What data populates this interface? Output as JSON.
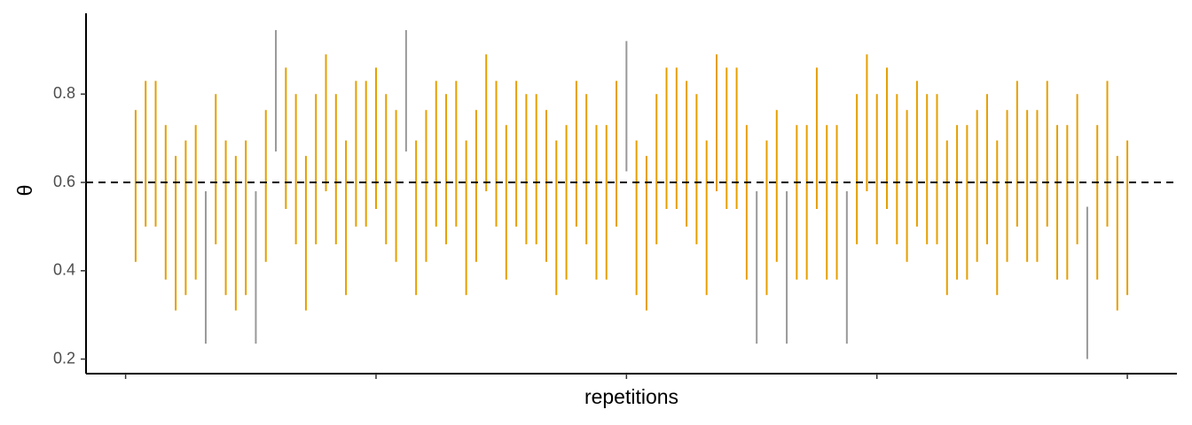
{
  "chart_data": {
    "type": "interval",
    "x_label": "repetitions",
    "y_label": "θ",
    "x": [
      1,
      2,
      3,
      4,
      5,
      6,
      7,
      8,
      9,
      10,
      11,
      12,
      13,
      14,
      15,
      16,
      17,
      18,
      19,
      20,
      21,
      22,
      23,
      24,
      25,
      26,
      27,
      28,
      29,
      30,
      31,
      32,
      33,
      34,
      35,
      36,
      37,
      38,
      39,
      40,
      41,
      42,
      43,
      44,
      45,
      46,
      47,
      48,
      49,
      50,
      51,
      52,
      53,
      54,
      55,
      56,
      57,
      58,
      59,
      60,
      61,
      62,
      63,
      64,
      65,
      66,
      67,
      68,
      69,
      70,
      71,
      72,
      73,
      74,
      75,
      76,
      77,
      78,
      79,
      80,
      81,
      82,
      83,
      84,
      85,
      86,
      87,
      88,
      89,
      90,
      91,
      92,
      93,
      94,
      95,
      96,
      97,
      98,
      99,
      100
    ],
    "lower": [
      0.42,
      0.5,
      0.5,
      0.38,
      0.31,
      0.345,
      0.38,
      0.235,
      0.46,
      0.345,
      0.31,
      0.345,
      0.235,
      0.42,
      0.67,
      0.54,
      0.46,
      0.31,
      0.46,
      0.58,
      0.46,
      0.345,
      0.5,
      0.5,
      0.54,
      0.46,
      0.42,
      0.67,
      0.345,
      0.42,
      0.5,
      0.46,
      0.5,
      0.345,
      0.42,
      0.58,
      0.5,
      0.38,
      0.5,
      0.46,
      0.46,
      0.42,
      0.345,
      0.38,
      0.5,
      0.46,
      0.38,
      0.38,
      0.5,
      0.625,
      0.345,
      0.31,
      0.46,
      0.54,
      0.54,
      0.5,
      0.46,
      0.345,
      0.58,
      0.54,
      0.54,
      0.38,
      0.235,
      0.345,
      0.42,
      0.235,
      0.38,
      0.38,
      0.54,
      0.38,
      0.38,
      0.235,
      0.46,
      0.58,
      0.46,
      0.54,
      0.46,
      0.42,
      0.5,
      0.46,
      0.46,
      0.345,
      0.38,
      0.38,
      0.42,
      0.46,
      0.345,
      0.42,
      0.5,
      0.42,
      0.42,
      0.5,
      0.38,
      0.38,
      0.46,
      0.2,
      0.38,
      0.5,
      0.31,
      0.345
    ],
    "upper": [
      0.764,
      0.83,
      0.83,
      0.73,
      0.66,
      0.695,
      0.73,
      0.58,
      0.8,
      0.695,
      0.66,
      0.695,
      0.58,
      0.764,
      0.945,
      0.86,
      0.8,
      0.66,
      0.8,
      0.89,
      0.8,
      0.695,
      0.83,
      0.83,
      0.86,
      0.8,
      0.764,
      0.945,
      0.695,
      0.764,
      0.83,
      0.8,
      0.83,
      0.695,
      0.764,
      0.89,
      0.83,
      0.73,
      0.83,
      0.8,
      0.8,
      0.764,
      0.695,
      0.73,
      0.83,
      0.8,
      0.73,
      0.73,
      0.83,
      0.92,
      0.695,
      0.66,
      0.8,
      0.86,
      0.86,
      0.83,
      0.8,
      0.695,
      0.89,
      0.86,
      0.86,
      0.73,
      0.58,
      0.695,
      0.764,
      0.58,
      0.73,
      0.73,
      0.86,
      0.73,
      0.73,
      0.58,
      0.8,
      0.89,
      0.8,
      0.86,
      0.8,
      0.764,
      0.83,
      0.8,
      0.8,
      0.695,
      0.73,
      0.73,
      0.764,
      0.8,
      0.695,
      0.764,
      0.83,
      0.764,
      0.764,
      0.83,
      0.73,
      0.73,
      0.8,
      0.545,
      0.73,
      0.83,
      0.66,
      0.695
    ],
    "hline": 0.6,
    "covered_color": "#E69F00",
    "missed_color": "#999999",
    "xlim": [
      -3.95,
      104.95
    ],
    "xticks": [
      0,
      25,
      50,
      75,
      100
    ],
    "ylim": [
      0.167,
      0.983
    ],
    "yticks": [
      0.2,
      0.4,
      0.6,
      0.8
    ]
  }
}
